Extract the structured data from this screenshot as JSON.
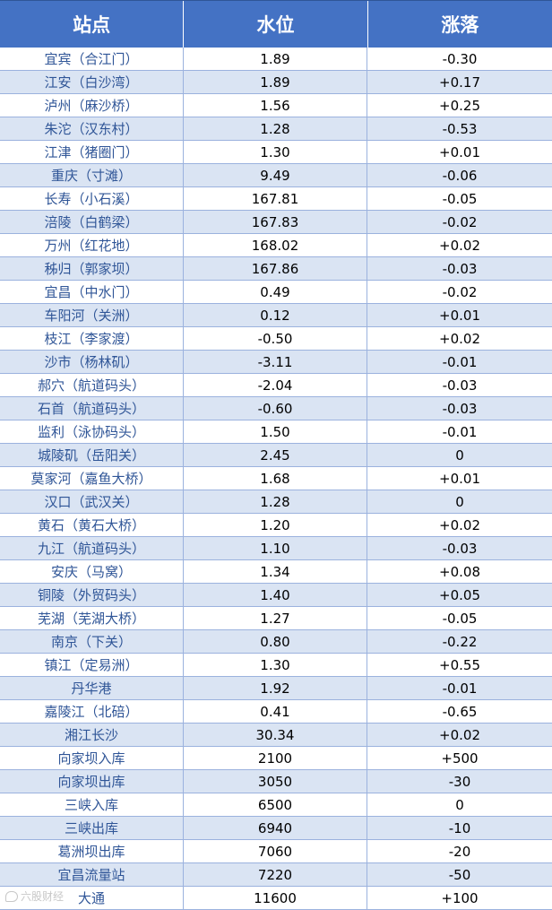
{
  "headers": [
    "站点",
    "水位",
    "涨落"
  ],
  "rows": [
    [
      "宜宾（合江门）",
      "1.89",
      "-0.30"
    ],
    [
      "江安（白沙湾）",
      "1.89",
      "+0.17"
    ],
    [
      "泸州（麻沙桥）",
      "1.56",
      "+0.25"
    ],
    [
      "朱沱（汉东村）",
      "1.28",
      "-0.53"
    ],
    [
      "江津（猪圈门）",
      "1.30",
      "+0.01"
    ],
    [
      "重庆（寸滩）",
      "9.49",
      "-0.06"
    ],
    [
      "长寿（小石溪）",
      "167.81",
      "-0.05"
    ],
    [
      "涪陵（白鹤梁）",
      "167.83",
      "-0.02"
    ],
    [
      "万州（红花地）",
      "168.02",
      "+0.02"
    ],
    [
      "秭归（郭家坝）",
      "167.86",
      "-0.03"
    ],
    [
      "宜昌（中水门）",
      "0.49",
      "-0.02"
    ],
    [
      "车阳河（关洲）",
      "0.12",
      "+0.01"
    ],
    [
      "枝江（李家渡）",
      "-0.50",
      "+0.02"
    ],
    [
      "沙市（杨林矶）",
      "-3.11",
      "-0.01"
    ],
    [
      "郝穴（航道码头）",
      "-2.04",
      "-0.03"
    ],
    [
      "石首（航道码头）",
      "-0.60",
      "-0.03"
    ],
    [
      "监利（泳协码头）",
      "1.50",
      "-0.01"
    ],
    [
      "城陵矶（岳阳关）",
      "2.45",
      "0"
    ],
    [
      "莫家河（嘉鱼大桥）",
      "1.68",
      "+0.01"
    ],
    [
      "汉口（武汉关）",
      "1.28",
      "0"
    ],
    [
      "黄石（黄石大桥）",
      "1.20",
      "+0.02"
    ],
    [
      "九江（航道码头）",
      "1.10",
      "-0.03"
    ],
    [
      "安庆（马窝）",
      "1.34",
      "+0.08"
    ],
    [
      "铜陵（外贸码头）",
      "1.40",
      "+0.05"
    ],
    [
      "芜湖（芜湖大桥）",
      "1.27",
      "-0.05"
    ],
    [
      "南京（下关）",
      "0.80",
      "-0.22"
    ],
    [
      "镇江（定易洲）",
      "1.30",
      "+0.55"
    ],
    [
      "丹华港",
      "1.92",
      "-0.01"
    ],
    [
      "嘉陵江（北碚）",
      "0.41",
      "-0.65"
    ],
    [
      "湘江长沙",
      "30.34",
      "+0.02"
    ],
    [
      "向家坝入库",
      "2100",
      "+500"
    ],
    [
      "向家坝出库",
      "3050",
      "-30"
    ],
    [
      "三峡入库",
      "6500",
      "0"
    ],
    [
      "三峡出库",
      "6940",
      "-10"
    ],
    [
      "葛洲坝出库",
      "7060",
      "-20"
    ],
    [
      "宜昌流量站",
      "7220",
      "-50"
    ],
    [
      "大通",
      "11600",
      "+100"
    ]
  ],
  "watermark": {
    "text": "六股财经",
    "icon": "chat-bubble-icon"
  }
}
